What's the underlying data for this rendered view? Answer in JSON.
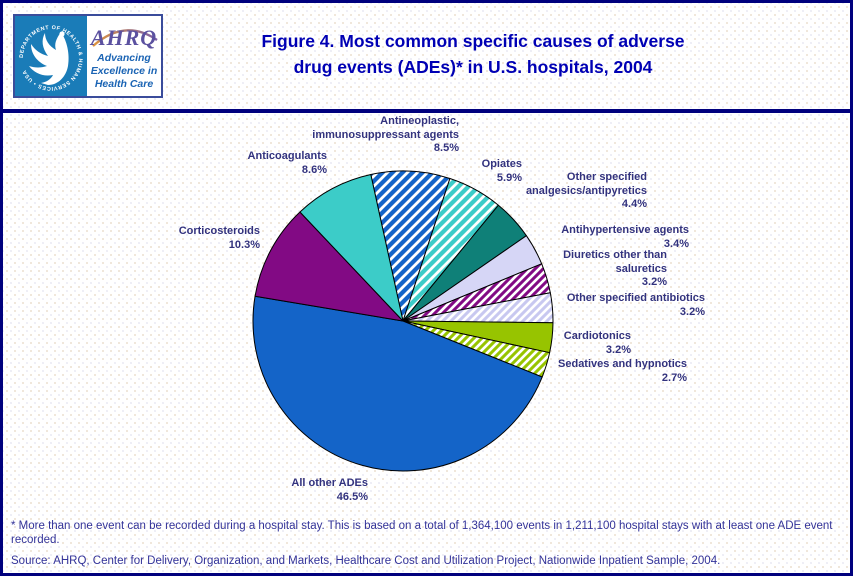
{
  "header": {
    "logo": {
      "ring_text": "DEPARTMENT OF HEALTH & HUMAN SERVICES • USA",
      "ahrq_acronym": "AHRQ",
      "tagline_lines": [
        "Advancing",
        "Excellence in",
        "Health Care"
      ]
    },
    "title_lines": [
      "Figure 4. Most common specific causes of adverse",
      "drug events (ADEs)* in U.S. hospitals, 2004"
    ]
  },
  "chart_data": {
    "type": "pie",
    "title": "Most common specific causes of adverse drug events (ADEs) in U.S. hospitals, 2004",
    "value_unit": "percent of ADE events",
    "start_angle_deg": -12.4,
    "direction": "clockwise",
    "slices": [
      {
        "id": "antineoplastic",
        "name": "Antineoplastic, immunosuppressant agents",
        "value": 8.5,
        "pct_label": "8.5%",
        "label_lines": [
          "Antineoplastic,",
          "immunosuppressant agents"
        ],
        "color": "#1464C8",
        "hatch": "white-stripes"
      },
      {
        "id": "opiates",
        "name": "Opiates",
        "value": 5.9,
        "pct_label": "5.9%",
        "label_lines": [
          "Opiates"
        ],
        "color": "#3CCCC8",
        "hatch": "white-stripes"
      },
      {
        "id": "analgesics",
        "name": "Other specified analgesics/antipyretics",
        "value": 4.4,
        "pct_label": "4.4%",
        "label_lines": [
          "Other specified",
          "analgesics/antipyretics"
        ],
        "color": "#0F8078",
        "hatch": null
      },
      {
        "id": "antihypertensive",
        "name": "Antihypertensive agents",
        "value": 3.4,
        "pct_label": "3.4%",
        "label_lines": [
          "Antihypertensive agents"
        ],
        "color": "#D6D6F6",
        "hatch": null
      },
      {
        "id": "diuretics",
        "name": "Diuretics other than saluretics",
        "value": 3.2,
        "pct_label": "3.2%",
        "label_lines": [
          "Diuretics other than",
          "saluretics"
        ],
        "color": "#820A84",
        "hatch": "color-stripes"
      },
      {
        "id": "antibiotics",
        "name": "Other specified antibiotics",
        "value": 3.2,
        "pct_label": "3.2%",
        "label_lines": [
          "Other specified antibiotics"
        ],
        "color": "#C8C8F0",
        "hatch": "color-stripes"
      },
      {
        "id": "cardiotonics",
        "name": "Cardiotonics",
        "value": 3.2,
        "pct_label": "3.2%",
        "label_lines": [
          "Cardiotonics"
        ],
        "color": "#97C400",
        "hatch": null
      },
      {
        "id": "sedatives",
        "name": "Sedatives and hypnotics",
        "value": 2.7,
        "pct_label": "2.7%",
        "label_lines": [
          "Sedatives and hypnotics"
        ],
        "color": "#97C400",
        "hatch": "color-stripes"
      },
      {
        "id": "allother",
        "name": "All other ADEs",
        "value": 46.5,
        "pct_label": "46.5%",
        "label_lines": [
          "All other ADEs"
        ],
        "color": "#1464C8",
        "hatch": null
      },
      {
        "id": "corticosteroids",
        "name": "Corticosteroids",
        "value": 10.3,
        "pct_label": "10.3%",
        "label_lines": [
          "Corticosteroids"
        ],
        "color": "#820A84",
        "hatch": null
      },
      {
        "id": "anticoagulants",
        "name": "Anticoagulants",
        "value": 8.6,
        "pct_label": "8.6%",
        "label_lines": [
          "Anticoagulants"
        ],
        "color": "#3CCCC8",
        "hatch": null
      }
    ]
  },
  "footnotes": {
    "note": "* More than one event can be recorded during a hospital stay. This is based on a total of 1,364,100 events in 1,211,100 hospital stays with at least one ADE event recorded.",
    "source": "Source: AHRQ, Center for Delivery, Organization, and Markets, Healthcare Cost and Utilization Project, Nationwide Inpatient Sample, 2004."
  },
  "colors": {
    "page_border": "#00007D",
    "header_rule": "#00007D",
    "title_text": "#0000B4",
    "label_text": "#32327E",
    "footnote_text": "#333399",
    "logo_square": "#1A7CB8",
    "slice_outline": "#000000"
  }
}
